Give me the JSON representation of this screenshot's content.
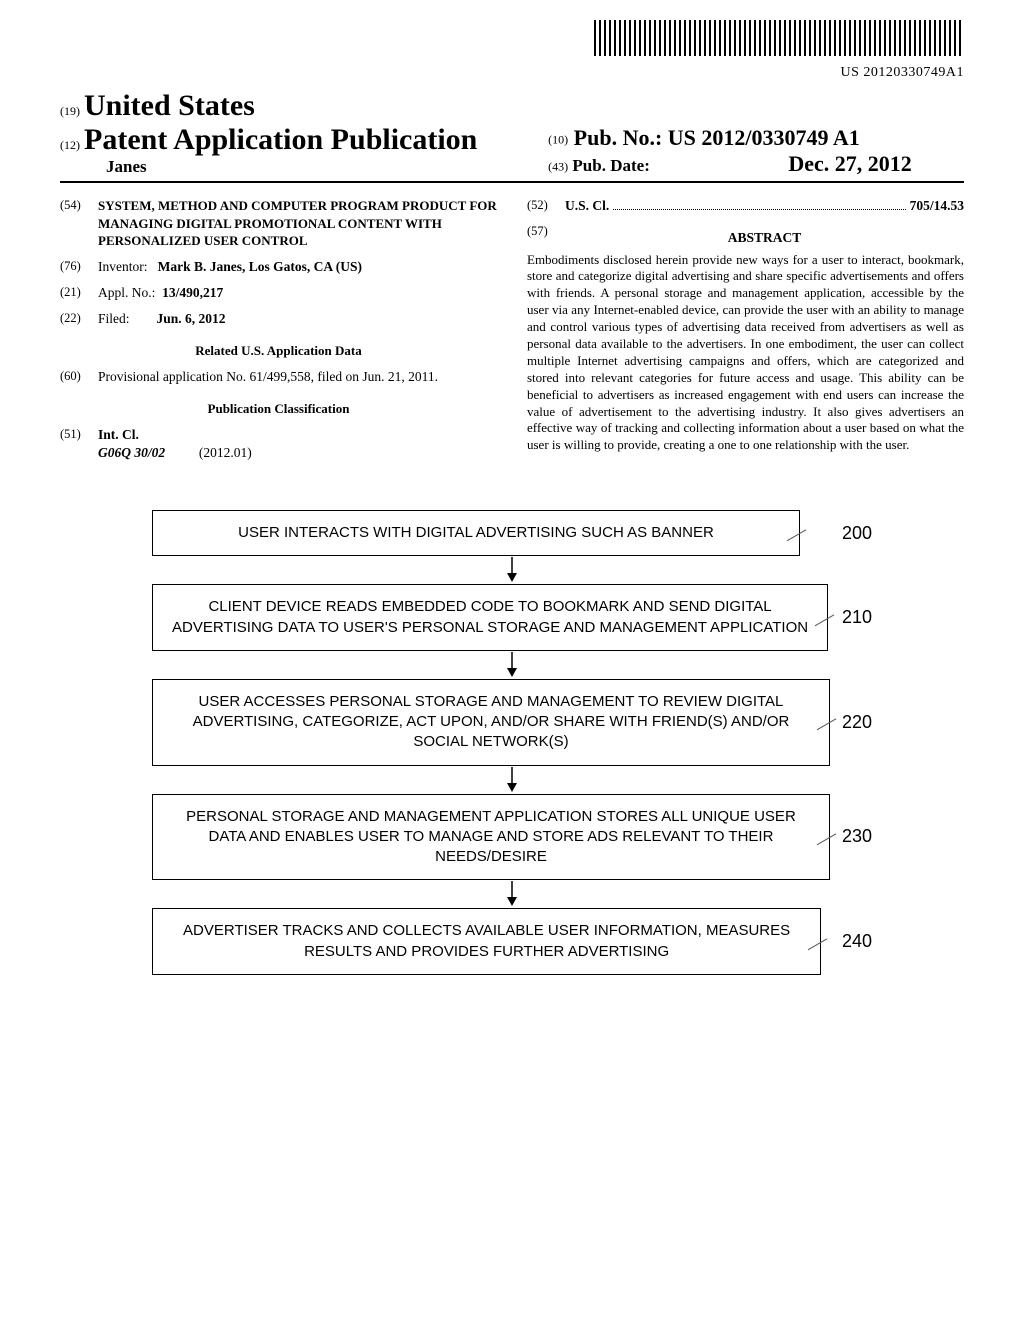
{
  "barcode_text": "US 20120330749A1",
  "header": {
    "code19": "(19)",
    "country": "United States",
    "code12": "(12)",
    "doc_type": "Patent Application Publication",
    "author": "Janes",
    "code10": "(10)",
    "pubno_label": "Pub. No.:",
    "pubno_value": "US 2012/0330749 A1",
    "code43": "(43)",
    "pubdate_label": "Pub. Date:",
    "pubdate_value": "Dec. 27, 2012"
  },
  "left_col": {
    "code54": "(54)",
    "title": "SYSTEM, METHOD AND COMPUTER PROGRAM PRODUCT FOR MANAGING DIGITAL PROMOTIONAL CONTENT WITH PERSONALIZED USER CONTROL",
    "code76": "(76)",
    "inventor_label": "Inventor:",
    "inventor_value": "Mark B. Janes, Los Gatos, CA (US)",
    "code21": "(21)",
    "applno_label": "Appl. No.:",
    "applno_value": "13/490,217",
    "code22": "(22)",
    "filed_label": "Filed:",
    "filed_value": "Jun. 6, 2012",
    "related_title": "Related U.S. Application Data",
    "code60": "(60)",
    "provisional": "Provisional application No. 61/499,558, filed on Jun. 21, 2011.",
    "pubclass_title": "Publication Classification",
    "code51": "(51)",
    "intcl_label": "Int. Cl.",
    "intcl_code": "G06Q 30/02",
    "intcl_year": "(2012.01)"
  },
  "right_col": {
    "code52": "(52)",
    "uscl_label": "U.S. Cl.",
    "uscl_value": "705/14.53",
    "code57": "(57)",
    "abstract_title": "ABSTRACT",
    "abstract_text": "Embodiments disclosed herein provide new ways for a user to interact, bookmark, store and categorize digital advertising and share specific advertisements and offers with friends. A personal storage and management application, accessible by the user via any Internet-enabled device, can provide the user with an ability to manage and control various types of advertising data received from advertisers as well as personal data available to the advertisers. In one embodiment, the user can collect multiple Internet advertising campaigns and offers, which are categorized and stored into relevant categories for future access and usage. This ability can be beneficial to advertisers as increased engagement with end users can increase the value of advertisement to the advertising industry. It also gives advertisers an effective way of tracking and collecting information about a user based on what the user is willing to provide, creating a one to one relationship with the user."
  },
  "flowchart": {
    "type": "flowchart",
    "font_family": "Arial",
    "box_border_color": "#000000",
    "arrow_color": "#000000",
    "steps": [
      {
        "num": "200",
        "text": "USER INTERACTS WITH DIGITAL ADVERTISING SUCH AS BANNER"
      },
      {
        "num": "210",
        "text": "CLIENT DEVICE READS EMBEDDED CODE TO BOOKMARK AND SEND DIGITAL ADVERTISING DATA TO USER'S PERSONAL STORAGE AND MANAGEMENT APPLICATION"
      },
      {
        "num": "220",
        "text": "USER ACCESSES PERSONAL STORAGE AND MANAGEMENT TO REVIEW DIGITAL ADVERTISING, CATEGORIZE, ACT UPON, AND/OR SHARE WITH FRIEND(S) AND/OR SOCIAL NETWORK(S)"
      },
      {
        "num": "230",
        "text": "PERSONAL STORAGE AND MANAGEMENT APPLICATION STORES ALL UNIQUE USER DATA AND ENABLES USER TO MANAGE AND STORE ADS RELEVANT TO THEIR NEEDS/DESIRE"
      },
      {
        "num": "240",
        "text": "ADVERTISER TRACKS AND COLLECTS AVAILABLE USER INFORMATION, MEASURES RESULTS AND PROVIDES FURTHER ADVERTISING"
      }
    ]
  }
}
